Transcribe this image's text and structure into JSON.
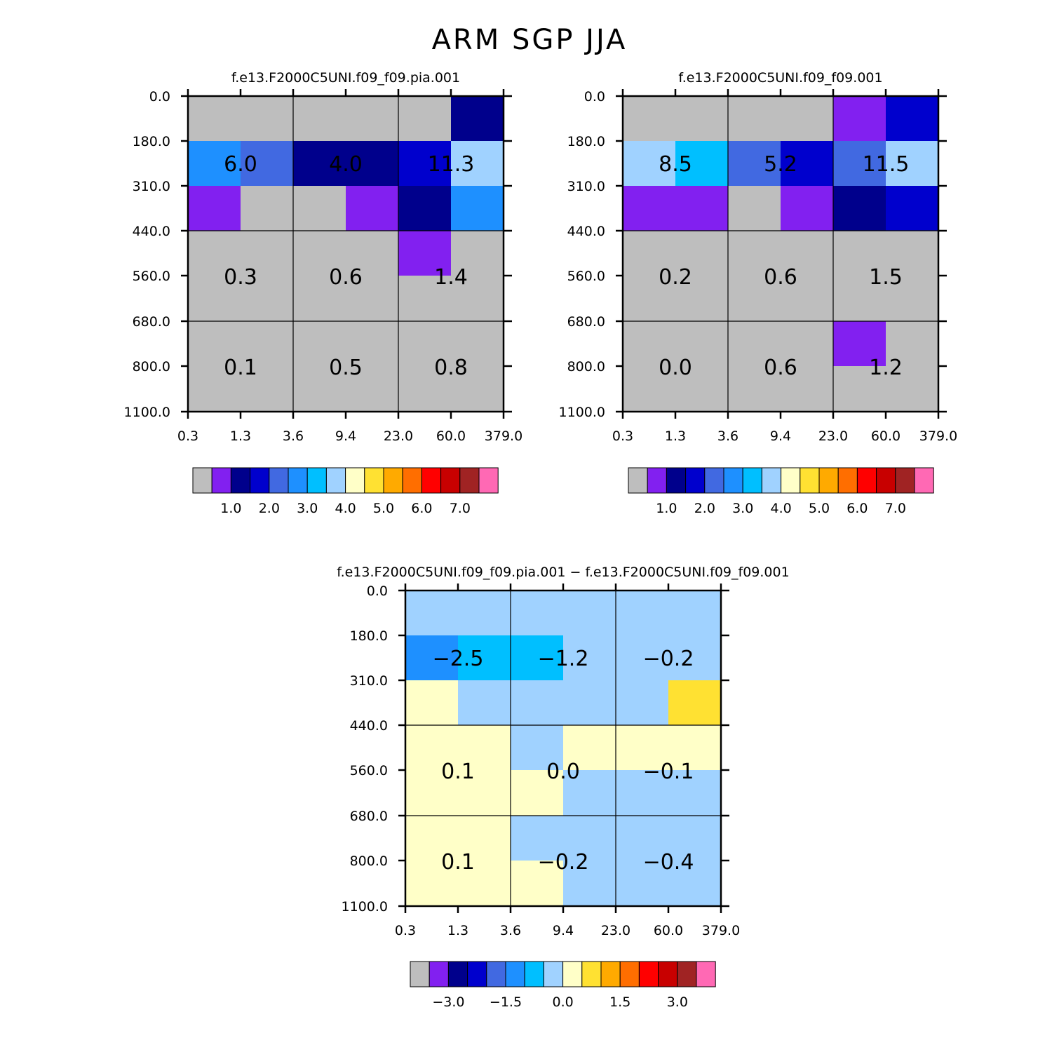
{
  "title": "ARM  SGP  JJA",
  "palette": [
    "#BEBEBE",
    "#8220F0",
    "#00008C",
    "#0000CD",
    "#4169E1",
    "#1E90FF",
    "#00BFFF",
    "#A0D2FF",
    "#FFFFC8",
    "#FFE132",
    "#FFAA00",
    "#FF6E00",
    "#FF0000",
    "#C80000",
    "#A02323",
    "#FF69B4"
  ],
  "chart_data": [
    {
      "type": "heatmap",
      "title": "f.e13.F2000C5UNI.f09_f09.pia.001",
      "xticklabels": [
        "0.3",
        "1.3",
        "3.6",
        "9.4",
        "23.0",
        "60.0",
        "379.0"
      ],
      "yticklabels": [
        "0.0",
        "180.0",
        "310.0",
        "440.0",
        "560.0",
        "680.0",
        "800.0",
        "1100.0"
      ],
      "cells": [
        [
          0,
          0,
          0,
          0,
          0,
          2
        ],
        [
          5,
          4,
          2,
          2,
          3,
          7
        ],
        [
          1,
          0,
          0,
          1,
          2,
          5
        ],
        [
          0,
          0,
          0,
          0,
          1,
          0
        ],
        [
          0,
          0,
          0,
          0,
          0,
          0
        ],
        [
          0,
          0,
          0,
          0,
          0,
          0
        ],
        [
          0,
          0,
          0,
          0,
          0,
          0
        ]
      ],
      "box_values": [
        [
          "6.0",
          "4.0",
          "11.3"
        ],
        [
          "0.3",
          "0.6",
          "1.4"
        ],
        [
          "0.1",
          "0.5",
          "0.8"
        ]
      ],
      "colorbar_labels": [
        "1.0",
        "2.0",
        "3.0",
        "4.0",
        "5.0",
        "6.0",
        "7.0"
      ]
    },
    {
      "type": "heatmap",
      "title": "f.e13.F2000C5UNI.f09_f09.001",
      "xticklabels": [
        "0.3",
        "1.3",
        "3.6",
        "9.4",
        "23.0",
        "60.0",
        "379.0"
      ],
      "yticklabels": [
        "0.0",
        "180.0",
        "310.0",
        "440.0",
        "560.0",
        "680.0",
        "800.0",
        "1100.0"
      ],
      "cells": [
        [
          0,
          0,
          0,
          0,
          1,
          3
        ],
        [
          7,
          6,
          4,
          3,
          4,
          7
        ],
        [
          1,
          1,
          0,
          1,
          2,
          3
        ],
        [
          0,
          0,
          0,
          0,
          0,
          0
        ],
        [
          0,
          0,
          0,
          0,
          0,
          0
        ],
        [
          0,
          0,
          0,
          0,
          1,
          0
        ],
        [
          0,
          0,
          0,
          0,
          0,
          0
        ]
      ],
      "box_values": [
        [
          "8.5",
          "5.2",
          "11.5"
        ],
        [
          "0.2",
          "0.6",
          "1.5"
        ],
        [
          "0.0",
          "0.6",
          "1.2"
        ]
      ],
      "colorbar_labels": [
        "1.0",
        "2.0",
        "3.0",
        "4.0",
        "5.0",
        "6.0",
        "7.0"
      ]
    },
    {
      "type": "heatmap",
      "title": "f.e13.F2000C5UNI.f09_f09.pia.001  −  f.e13.F2000C5UNI.f09_f09.001",
      "xticklabels": [
        "0.3",
        "1.3",
        "3.6",
        "9.4",
        "23.0",
        "60.0",
        "379.0"
      ],
      "yticklabels": [
        "0.0",
        "180.0",
        "310.0",
        "440.0",
        "560.0",
        "680.0",
        "800.0",
        "1100.0"
      ],
      "cells": [
        [
          7,
          7,
          7,
          7,
          7,
          7
        ],
        [
          5,
          6,
          6,
          7,
          7,
          7
        ],
        [
          8,
          7,
          7,
          7,
          7,
          9
        ],
        [
          8,
          8,
          7,
          8,
          8,
          8
        ],
        [
          8,
          8,
          8,
          7,
          7,
          7
        ],
        [
          8,
          8,
          7,
          7,
          7,
          7
        ],
        [
          8,
          8,
          8,
          7,
          7,
          7
        ]
      ],
      "box_values": [
        [
          "−2.5",
          "−1.2",
          "−0.2"
        ],
        [
          "0.1",
          "0.0",
          "−0.1"
        ],
        [
          "0.1",
          "−0.2",
          "−0.4"
        ]
      ],
      "colorbar_labels": [
        "−3.0",
        "−1.5",
        "0.0",
        "1.5",
        "3.0"
      ]
    }
  ]
}
